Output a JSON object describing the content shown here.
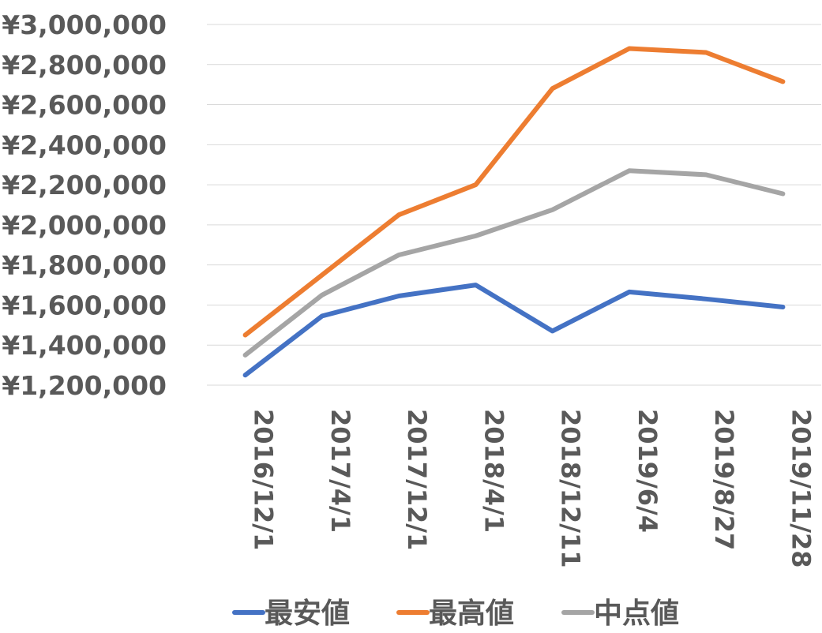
{
  "chart_data": {
    "type": "line",
    "categories": [
      "2016/12/1",
      "2017/4/1",
      "2017/12/1",
      "2018/4/1",
      "2018/12/11",
      "2019/6/4",
      "2019/8/27",
      "2019/11/28"
    ],
    "series": [
      {
        "name": "最安値",
        "color": "#4472C4",
        "values": [
          1250000,
          1545000,
          1645000,
          1700000,
          1470000,
          1665000,
          1630000,
          1590000
        ]
      },
      {
        "name": "最高値",
        "color": "#ED7D31",
        "values": [
          1450000,
          1750000,
          2050000,
          2200000,
          2680000,
          2880000,
          2860000,
          2715000
        ]
      },
      {
        "name": "中点値",
        "color": "#A5A5A5",
        "values": [
          1350000,
          1650000,
          1850000,
          1945000,
          2075000,
          2270000,
          2250000,
          2155000
        ]
      }
    ],
    "ylim": [
      1200000,
      3000000
    ],
    "yticks": [
      "¥1,200,000",
      "¥1,400,000",
      "¥1,600,000",
      "¥1,800,000",
      "¥2,000,000",
      "¥2,200,000",
      "¥2,400,000",
      "¥2,600,000",
      "¥2,800,000",
      "¥3,000,000"
    ],
    "ytick_values": [
      1200000,
      1400000,
      1600000,
      1800000,
      2000000,
      2200000,
      2400000,
      2600000,
      2800000,
      3000000
    ],
    "grid": true,
    "legend": "bottom",
    "title": "",
    "xlabel": "",
    "ylabel": ""
  }
}
